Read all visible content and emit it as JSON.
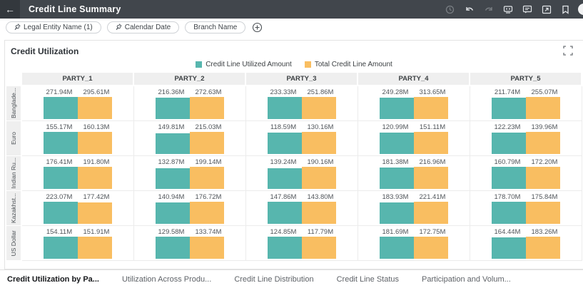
{
  "titlebar": {
    "title": "Credit Line Summary",
    "back_label": "←"
  },
  "filters": {
    "chips": [
      {
        "label": "Legal Entity Name (1)",
        "pinned": true
      },
      {
        "label": "Calendar Date",
        "pinned": true
      },
      {
        "label": "Branch Name",
        "pinned": false
      }
    ]
  },
  "panel": {
    "title": "Credit Utilization"
  },
  "chart_data": {
    "type": "bar",
    "title": "Credit Utilization",
    "legend": [
      {
        "name": "Credit Line Utilized Amount",
        "color": "#57b6ae"
      },
      {
        "name": "Total Credit Line Amount",
        "color": "#f9be61"
      }
    ],
    "layout": "trellis (columns = party, rows = currency), value labels above paired bars",
    "unit": "M",
    "columns": [
      "PARTY_1",
      "PARTY_2",
      "PARTY_3",
      "PARTY_4",
      "PARTY_5"
    ],
    "series_names": [
      "Credit Line Utilized Amount",
      "Total Credit Line Amount"
    ],
    "rows": [
      {
        "label": "Banglade...",
        "cells": [
          [
            271.94,
            295.61
          ],
          [
            216.36,
            272.63
          ],
          [
            233.33,
            251.86
          ],
          [
            249.28,
            313.65
          ],
          [
            211.74,
            255.07
          ]
        ]
      },
      {
        "label": "Euro",
        "cells": [
          [
            155.17,
            160.13
          ],
          [
            149.81,
            215.03
          ],
          [
            118.59,
            130.16
          ],
          [
            120.99,
            151.11
          ],
          [
            122.23,
            139.96
          ]
        ]
      },
      {
        "label": "Indian Ru...",
        "cells": [
          [
            176.41,
            191.8
          ],
          [
            132.87,
            199.14
          ],
          [
            139.24,
            190.16
          ],
          [
            181.38,
            216.96
          ],
          [
            160.79,
            172.2
          ]
        ]
      },
      {
        "label": "Kazakhst...",
        "cells": [
          [
            223.07,
            177.42
          ],
          [
            140.94,
            176.72
          ],
          [
            147.86,
            143.8
          ],
          [
            183.93,
            221.41
          ],
          [
            178.7,
            175.84
          ]
        ]
      },
      {
        "label": "US Dollar",
        "cells": [
          [
            154.11,
            151.91
          ],
          [
            129.58,
            133.74
          ],
          [
            124.85,
            117.79
          ],
          [
            181.69,
            172.75
          ],
          [
            164.44,
            183.26
          ]
        ]
      }
    ]
  },
  "tabs": [
    {
      "label": "Credit Utilization by Pa...",
      "active": true
    },
    {
      "label": "Utilization Across Produ...",
      "active": false
    },
    {
      "label": "Credit Line Distribution",
      "active": false
    },
    {
      "label": "Credit Line Status",
      "active": false
    },
    {
      "label": "Participation and Volum...",
      "active": false
    }
  ]
}
